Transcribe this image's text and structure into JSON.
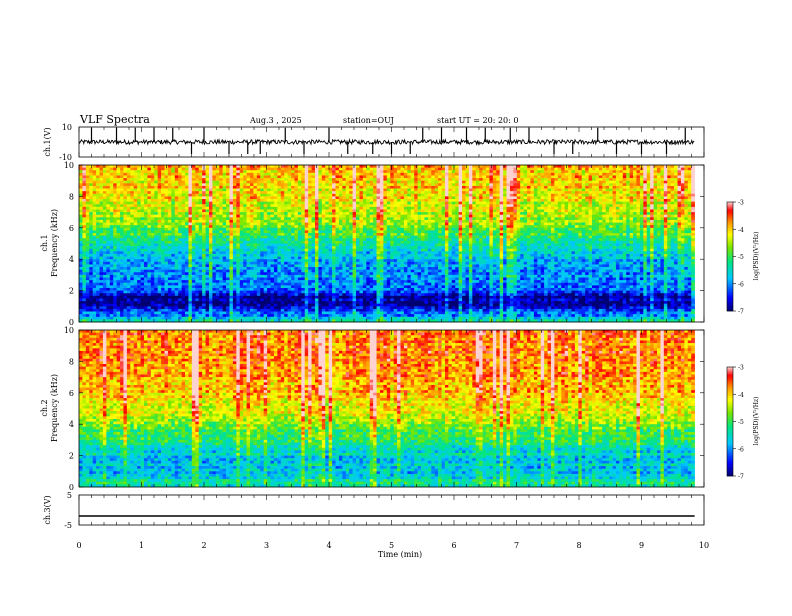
{
  "header": {
    "title": "VLF Spectra",
    "date": "Aug.3 , 2025",
    "station": "station=OUJ",
    "start": "start UT = 20: 20: 0"
  },
  "chart_data": [
    {
      "type": "line",
      "name": "ch1-waveform",
      "ylabel": "ch.1(V)",
      "ylim": [
        -10,
        10
      ],
      "y_ticks": [
        "10",
        "-10"
      ],
      "baseline": 0,
      "noise_amplitude": 1.5,
      "spike_times_min": [
        0.2,
        0.6,
        0.9,
        1.2,
        1.5,
        1.8,
        2.0,
        2.4,
        2.7,
        2.9,
        3.3,
        3.6,
        4.0,
        4.3,
        4.7,
        5.0,
        5.3,
        5.5,
        5.8,
        6.2,
        6.5,
        6.9,
        7.2,
        7.6,
        7.9,
        8.3,
        8.6,
        9.0,
        9.4,
        9.7
      ],
      "xlim": [
        0,
        10
      ]
    },
    {
      "type": "heatmap",
      "name": "ch1-spectrogram",
      "ylabel": "Frequency (kHz)",
      "channel_label": "ch.1",
      "xlim": [
        0,
        9.85
      ],
      "ylim": [
        0,
        10
      ],
      "y_ticks": [
        0,
        2,
        4,
        6,
        8,
        10
      ],
      "colorbar": {
        "label": "log(PSD)(V²/Hz)",
        "range": [
          -7,
          -3
        ],
        "ticks": [
          "-3",
          "-4",
          "-5",
          "-6",
          "-7"
        ]
      },
      "level_profile_khz": [
        {
          "f": 0.0,
          "v": -5.4
        },
        {
          "f": 0.6,
          "v": -6.2
        },
        {
          "f": 1.0,
          "v": -6.8
        },
        {
          "f": 1.6,
          "v": -6.9
        },
        {
          "f": 2.0,
          "v": -6.3
        },
        {
          "f": 3.0,
          "v": -6.0
        },
        {
          "f": 4.0,
          "v": -5.8
        },
        {
          "f": 5.0,
          "v": -5.3
        },
        {
          "f": 6.0,
          "v": -4.8
        },
        {
          "f": 7.0,
          "v": -4.4
        },
        {
          "f": 8.0,
          "v": -4.2
        },
        {
          "f": 9.0,
          "v": -4.0
        },
        {
          "f": 10.0,
          "v": -3.9
        }
      ]
    },
    {
      "type": "heatmap",
      "name": "ch2-spectrogram",
      "ylabel": "Frequency (kHz)",
      "channel_label": "ch.2",
      "xlim": [
        0,
        9.85
      ],
      "ylim": [
        0,
        10
      ],
      "y_ticks": [
        0,
        2,
        4,
        6,
        8,
        10
      ],
      "colorbar": {
        "label": "log(PSD)(V²/Hz)",
        "range": [
          -7,
          -3
        ],
        "ticks": [
          "-3",
          "-4",
          "-5",
          "-6",
          "-7"
        ]
      },
      "level_profile_khz": [
        {
          "f": 0.0,
          "v": -5.3
        },
        {
          "f": 1.0,
          "v": -5.7
        },
        {
          "f": 2.0,
          "v": -5.6
        },
        {
          "f": 3.0,
          "v": -5.2
        },
        {
          "f": 4.0,
          "v": -4.7
        },
        {
          "f": 5.0,
          "v": -4.2
        },
        {
          "f": 6.0,
          "v": -3.9
        },
        {
          "f": 8.0,
          "v": -3.7
        },
        {
          "f": 10.0,
          "v": -3.7
        }
      ]
    },
    {
      "type": "line",
      "name": "ch3-waveform",
      "ylabel": "ch.3(V)",
      "ylim": [
        -5,
        5
      ],
      "y_ticks": [
        "5",
        "-5"
      ],
      "baseline": -2,
      "noise_amplitude": 0,
      "xlim": [
        0,
        10
      ]
    }
  ],
  "xaxis": {
    "label": "Time (min)",
    "ticks": [
      "0",
      "1",
      "2",
      "3",
      "4",
      "5",
      "6",
      "7",
      "8",
      "9",
      "10"
    ],
    "range": [
      0,
      10
    ]
  }
}
